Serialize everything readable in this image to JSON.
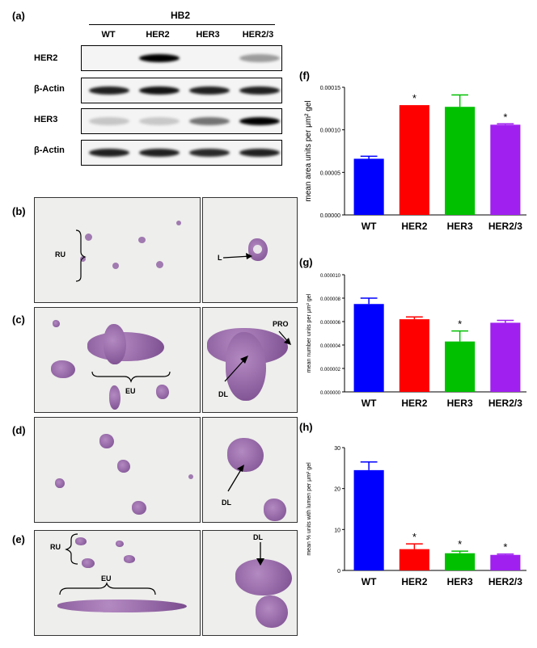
{
  "panel_labels": {
    "a": "(a)",
    "b": "(b)",
    "c": "(c)",
    "d": "(d)",
    "e": "(e)",
    "f": "(f)",
    "g": "(g)",
    "h": "(h)"
  },
  "western_blot": {
    "title": "HB2",
    "columns": [
      "WT",
      "HER2",
      "HER3",
      "HER2/3"
    ],
    "rows": [
      {
        "label": "HER2",
        "intensities": [
          0.0,
          1.0,
          0.0,
          0.25
        ]
      },
      {
        "label": "β-Actin",
        "intensities": [
          0.85,
          0.9,
          0.85,
          0.85
        ]
      },
      {
        "label": "HER3",
        "intensities": [
          0.05,
          0.03,
          0.45,
          1.0
        ]
      },
      {
        "label": "β-Actin",
        "intensities": [
          0.85,
          0.85,
          0.8,
          0.85
        ]
      }
    ]
  },
  "micrograph_labels": {
    "b_RU": "RU",
    "b_L": "L",
    "c_EU": "EU",
    "c_DL": "DL",
    "c_PRO": "PRO",
    "d_DL": "DL",
    "e_RU": "RU",
    "e_EU": "EU",
    "e_DL": "DL"
  },
  "colors": {
    "WT": "#0000ff",
    "HER2": "#ff0000",
    "HER3": "#00c000",
    "HER2/3": "#a020f0"
  },
  "chart_data": [
    {
      "id": "f",
      "type": "bar",
      "categories": [
        "WT",
        "HER2",
        "HER3",
        "HER2/3"
      ],
      "values": [
        6.6e-05,
        0.000129,
        0.000127,
        0.000106
      ],
      "errors": [
        3e-06,
        0.0,
        1.4e-05,
        1e-06
      ],
      "significant": [
        false,
        true,
        false,
        true
      ],
      "ylabel": "mean area units per μm² gel",
      "ylim": [
        0,
        0.00015
      ],
      "yticks": [
        "0.00000",
        "0.00005",
        "0.00010",
        "0.00015"
      ]
    },
    {
      "id": "g",
      "type": "bar",
      "categories": [
        "WT",
        "HER2",
        "HER3",
        "HER2/3"
      ],
      "values": [
        7.5e-06,
        6.2e-06,
        4.3e-06,
        5.9e-06
      ],
      "errors": [
        5e-07,
        2e-07,
        9e-07,
        2e-07
      ],
      "significant": [
        false,
        false,
        true,
        false
      ],
      "ylabel": "mean number units per μm² gel",
      "ylim": [
        0,
        1e-05
      ],
      "yticks": [
        "0.000000",
        "0.000002",
        "0.000004",
        "0.000006",
        "0.000008",
        "0.000010"
      ]
    },
    {
      "id": "h",
      "type": "bar",
      "categories": [
        "WT",
        "HER2",
        "HER3",
        "HER2/3"
      ],
      "values": [
        24.5,
        5.2,
        4.2,
        3.8
      ],
      "errors": [
        2.0,
        1.3,
        0.5,
        0.2
      ],
      "significant": [
        false,
        true,
        true,
        true
      ],
      "ylabel": "mean % units with lumen per μm² gel",
      "ylim": [
        0,
        30
      ],
      "yticks": [
        "0",
        "10",
        "20",
        "30"
      ]
    }
  ],
  "significance_mark": "*"
}
